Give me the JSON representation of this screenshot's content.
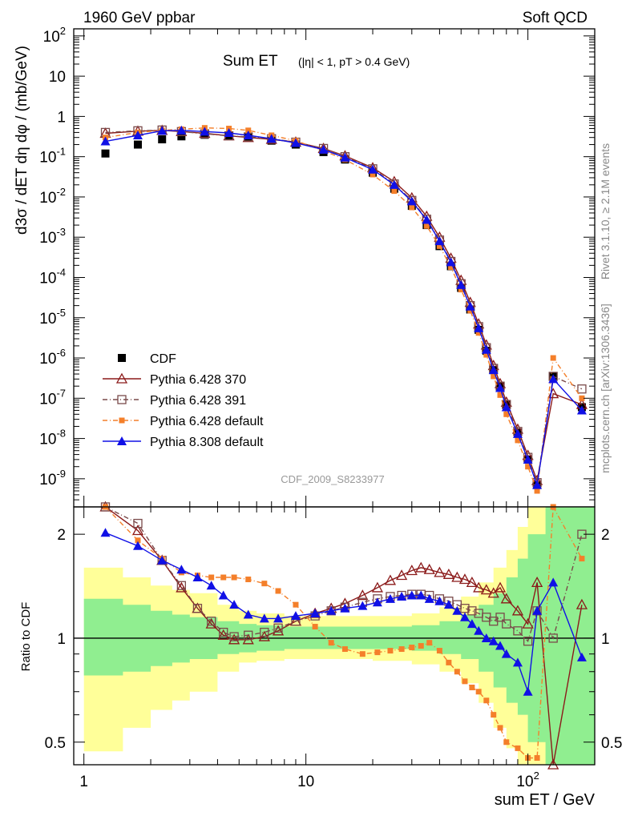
{
  "header": {
    "left": "1960 GeV ppbar",
    "right": "Soft QCD"
  },
  "side": {
    "rivet": "Rivet 3.1.10, ≥ 2.1M events",
    "ref": "mcplots.cern.ch [arXiv:1306.3436]"
  },
  "colors": {
    "cdf": "#000000",
    "p370": "#8b1a1a",
    "p391": "#7a4a4a",
    "p6def": "#f47f2a",
    "p8def": "#1010e6",
    "band_inner": "#90ee90",
    "band_outer": "#ffff99"
  },
  "chart_data": [
    {
      "type": "line",
      "title": "Sum ET",
      "title_note": "(|η| < 1, pT > 0.4 GeV)",
      "watermark": "CDF_2009_S8233977",
      "ylabel": "d3σ / dET dη dφ / (mb/GeV)",
      "xscale": "log",
      "yscale": "log",
      "xlim": [
        0.9,
        200
      ],
      "ylim": [
        2e-10,
        150
      ],
      "yticks": [
        "10^2",
        "10",
        "1",
        "10^-1",
        "10^-2",
        "10^-3",
        "10^-4",
        "10^-5",
        "10^-6",
        "10^-7",
        "10^-8",
        "10^-9"
      ],
      "legend_position": "bottom-left",
      "series": [
        {
          "name": "CDF",
          "marker": "square-filled",
          "color": "#000000",
          "x": [
            1.25,
            1.75,
            2.25,
            2.75,
            3.5,
            4.5,
            5.5,
            7,
            9,
            12,
            15,
            20,
            25,
            30,
            35,
            40,
            45,
            50,
            55,
            60,
            65,
            70,
            75,
            80,
            90,
            100,
            110,
            130,
            175
          ],
          "y": [
            0.12,
            0.2,
            0.27,
            0.32,
            0.35,
            0.33,
            0.3,
            0.25,
            0.2,
            0.13,
            0.085,
            0.04,
            0.016,
            0.006,
            0.002,
            0.0006,
            0.00019,
            5.5e-05,
            1.6e-05,
            5e-06,
            1.5e-06,
            5e-07,
            2e-07,
            7e-08,
            1.4e-08,
            3e-09,
            7e-10,
            3.5e-07,
            6e-08
          ]
        },
        {
          "name": "Pythia 6.428 370",
          "marker": "triangle-open",
          "color": "#8b1a1a",
          "x": [
            1.25,
            1.75,
            2.25,
            2.75,
            3.5,
            4.5,
            5.5,
            7,
            9,
            12,
            15,
            20,
            25,
            30,
            35,
            40,
            45,
            50,
            55,
            60,
            65,
            70,
            75,
            80,
            90,
            100,
            110,
            130,
            175
          ],
          "y": [
            0.38,
            0.43,
            0.45,
            0.42,
            0.38,
            0.33,
            0.3,
            0.27,
            0.23,
            0.16,
            0.105,
            0.053,
            0.024,
            0.0095,
            0.0033,
            0.001,
            0.0003,
            8.5e-05,
            2.4e-05,
            7e-06,
            2.1e-06,
            6.5e-07,
            2.3e-07,
            8e-08,
            1.7e-08,
            3.8e-09,
            9e-10,
            1.3e-07,
            7e-08
          ]
        },
        {
          "name": "Pythia 6.428 391",
          "marker": "square-open",
          "color": "#7a4a4a",
          "x": [
            1.25,
            1.75,
            2.25,
            2.75,
            3.5,
            4.5,
            5.5,
            7,
            9,
            12,
            15,
            20,
            25,
            30,
            35,
            40,
            45,
            50,
            55,
            60,
            65,
            70,
            75,
            80,
            90,
            100,
            110,
            130,
            175
          ],
          "y": [
            0.4,
            0.44,
            0.46,
            0.42,
            0.37,
            0.33,
            0.31,
            0.28,
            0.23,
            0.16,
            0.1,
            0.05,
            0.021,
            0.0082,
            0.0028,
            0.00085,
            0.00025,
            7e-05,
            2e-05,
            6e-06,
            1.8e-06,
            5.5e-07,
            2e-07,
            7e-08,
            1.5e-08,
            3.4e-09,
            8e-10,
            3.5e-07,
            1.7e-07
          ]
        },
        {
          "name": "Pythia 6.428 default",
          "marker": "square-small-filled",
          "color": "#f47f2a",
          "x": [
            1.25,
            1.75,
            2.25,
            2.75,
            3.5,
            4.5,
            5.5,
            7,
            9,
            12,
            15,
            20,
            25,
            30,
            35,
            40,
            45,
            50,
            55,
            60,
            65,
            70,
            75,
            80,
            90,
            100,
            110,
            130,
            175
          ],
          "y": [
            0.3,
            0.4,
            0.45,
            0.48,
            0.52,
            0.5,
            0.45,
            0.34,
            0.25,
            0.14,
            0.085,
            0.036,
            0.014,
            0.0055,
            0.0019,
            0.0006,
            0.00018,
            5e-05,
            1.5e-05,
            4.2e-06,
            1.2e-06,
            3.5e-07,
            1.2e-07,
            4e-08,
            9e-09,
            2e-09,
            5e-10,
            1e-06,
            1e-07
          ]
        },
        {
          "name": "Pythia 8.308 default",
          "marker": "triangle-filled",
          "color": "#1010e6",
          "x": [
            1.25,
            1.75,
            2.25,
            2.75,
            3.5,
            4.5,
            5.5,
            7,
            9,
            12,
            15,
            20,
            25,
            30,
            35,
            40,
            45,
            50,
            55,
            60,
            65,
            70,
            75,
            80,
            90,
            100,
            110,
            130,
            175
          ],
          "y": [
            0.24,
            0.34,
            0.44,
            0.45,
            0.42,
            0.39,
            0.34,
            0.28,
            0.22,
            0.15,
            0.095,
            0.048,
            0.02,
            0.0078,
            0.0027,
            0.0008,
            0.00024,
            6.5e-05,
            1.9e-05,
            5.5e-06,
            1.6e-06,
            5e-07,
            1.8e-07,
            6e-08,
            1.3e-08,
            3e-09,
            7e-10,
            3e-07,
            5e-08
          ]
        }
      ]
    },
    {
      "type": "line",
      "ylabel": "Ratio to CDF",
      "xlabel": "sum ET / GeV",
      "xscale": "log",
      "yscale": "log",
      "xlim": [
        0.9,
        200
      ],
      "ylim": [
        0.43,
        2.4
      ],
      "yticks": [
        "0.5",
        "1",
        "2"
      ],
      "xticks": [
        "1",
        "10",
        "10^2"
      ],
      "band_x": [
        1,
        1.5,
        2,
        2.5,
        3,
        4,
        5,
        6,
        8,
        10,
        15,
        20,
        30,
        40,
        50,
        60,
        70,
        80,
        90,
        100,
        120,
        150,
        200
      ],
      "band_inner_lo": [
        0.78,
        0.8,
        0.83,
        0.85,
        0.87,
        0.9,
        0.91,
        0.92,
        0.93,
        0.93,
        0.93,
        0.93,
        0.92,
        0.9,
        0.87,
        0.8,
        0.72,
        0.65,
        0.6,
        0.5,
        0.4,
        0.35,
        0.3
      ],
      "band_inner_hi": [
        1.3,
        1.25,
        1.2,
        1.17,
        1.15,
        1.12,
        1.1,
        1.09,
        1.08,
        1.08,
        1.08,
        1.08,
        1.09,
        1.12,
        1.17,
        1.25,
        1.35,
        1.5,
        1.7,
        2.0,
        2.4,
        2.4,
        2.4
      ],
      "band_outer_lo": [
        0.47,
        0.55,
        0.62,
        0.66,
        0.7,
        0.8,
        0.85,
        0.86,
        0.87,
        0.87,
        0.87,
        0.86,
        0.84,
        0.8,
        0.74,
        0.65,
        0.55,
        0.48,
        0.43,
        0.43,
        0.43,
        0.43,
        0.43
      ],
      "band_outer_hi": [
        1.6,
        1.5,
        1.42,
        1.38,
        1.35,
        1.25,
        1.2,
        1.18,
        1.16,
        1.16,
        1.16,
        1.16,
        1.18,
        1.23,
        1.32,
        1.45,
        1.6,
        1.8,
        2.1,
        2.4,
        2.4,
        2.4,
        2.4
      ],
      "series": [
        {
          "name": "Pythia 6.428 370",
          "color": "#8b1a1a",
          "marker": "triangle-open",
          "x": [
            1.25,
            1.75,
            2.25,
            2.75,
            3.25,
            3.75,
            4.25,
            4.75,
            5.5,
            6.5,
            7.5,
            9,
            11,
            13,
            15,
            18,
            21,
            24,
            27,
            30,
            33,
            36,
            40,
            44,
            48,
            52,
            56,
            60,
            65,
            70,
            75,
            80,
            90,
            100,
            110,
            130,
            175
          ],
          "y": [
            2.4,
            2.05,
            1.68,
            1.4,
            1.22,
            1.1,
            1.02,
            0.99,
            0.99,
            1.01,
            1.05,
            1.12,
            1.18,
            1.22,
            1.26,
            1.33,
            1.4,
            1.47,
            1.52,
            1.57,
            1.6,
            1.58,
            1.55,
            1.53,
            1.5,
            1.48,
            1.45,
            1.4,
            1.38,
            1.35,
            1.4,
            1.3,
            1.2,
            1.1,
            1.45,
            0.43,
            1.25
          ]
        },
        {
          "name": "Pythia 6.428 391",
          "color": "#7a4a4a",
          "marker": "square-open",
          "x": [
            1.25,
            1.75,
            2.25,
            2.75,
            3.25,
            3.75,
            4.25,
            4.75,
            5.5,
            6.5,
            7.5,
            9,
            11,
            13,
            15,
            18,
            21,
            24,
            27,
            30,
            33,
            36,
            40,
            44,
            48,
            52,
            56,
            60,
            65,
            70,
            75,
            80,
            90,
            100,
            110,
            130,
            175
          ],
          "y": [
            2.4,
            2.15,
            1.68,
            1.42,
            1.22,
            1.12,
            1.04,
            1.01,
            1.02,
            1.04,
            1.07,
            1.12,
            1.16,
            1.2,
            1.23,
            1.27,
            1.3,
            1.32,
            1.33,
            1.34,
            1.34,
            1.33,
            1.3,
            1.28,
            1.25,
            1.22,
            1.2,
            1.18,
            1.15,
            1.12,
            1.15,
            1.1,
            1.05,
            0.98,
            1.2,
            1.0,
            2.0
          ]
        },
        {
          "name": "Pythia 6.428 default",
          "color": "#f47f2a",
          "marker": "square-small-filled",
          "x": [
            1.25,
            1.75,
            2.25,
            2.75,
            3.25,
            3.75,
            4.25,
            4.75,
            5.5,
            6.5,
            7.5,
            9,
            11,
            13,
            15,
            18,
            21,
            24,
            27,
            30,
            33,
            36,
            40,
            44,
            48,
            52,
            56,
            60,
            65,
            70,
            75,
            80,
            90,
            100,
            110,
            130,
            175
          ],
          "y": [
            2.4,
            1.92,
            1.7,
            1.55,
            1.52,
            1.5,
            1.5,
            1.5,
            1.48,
            1.44,
            1.37,
            1.25,
            1.08,
            0.97,
            0.93,
            0.9,
            0.91,
            0.92,
            0.93,
            0.94,
            0.95,
            0.97,
            0.92,
            0.85,
            0.8,
            0.75,
            0.72,
            0.7,
            0.66,
            0.6,
            0.55,
            0.5,
            0.48,
            0.45,
            0.45,
            2.4,
            1.7
          ]
        },
        {
          "name": "Pythia 8.308 default",
          "color": "#1010e6",
          "marker": "triangle-filled",
          "x": [
            1.25,
            1.75,
            2.25,
            2.75,
            3.25,
            3.75,
            4.25,
            4.75,
            5.5,
            6.5,
            7.5,
            9,
            11,
            13,
            15,
            18,
            21,
            24,
            27,
            30,
            33,
            36,
            40,
            44,
            48,
            52,
            56,
            60,
            65,
            70,
            75,
            80,
            90,
            100,
            110,
            130,
            175
          ],
          "y": [
            2.02,
            1.85,
            1.68,
            1.58,
            1.5,
            1.42,
            1.33,
            1.25,
            1.17,
            1.14,
            1.14,
            1.16,
            1.18,
            1.2,
            1.22,
            1.24,
            1.27,
            1.3,
            1.32,
            1.33,
            1.33,
            1.3,
            1.28,
            1.25,
            1.2,
            1.15,
            1.1,
            1.05,
            1.0,
            0.98,
            0.95,
            0.9,
            0.85,
            0.7,
            1.2,
            1.45,
            0.88
          ]
        }
      ]
    }
  ]
}
